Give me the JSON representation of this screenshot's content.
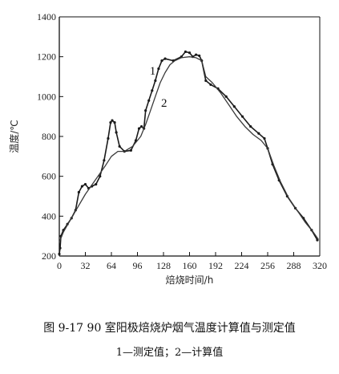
{
  "caption": {
    "title": "图 9-17   90 室阳极焙烧炉烟气温度计算值与测定值",
    "legend": "1—测定值；2—计算值"
  },
  "chart_data": {
    "type": "line",
    "xlabel": "焙烧时间/h",
    "ylabel": "温度/℃",
    "xlim": [
      0,
      320
    ],
    "ylim": [
      200,
      1400
    ],
    "xticks": [
      0,
      32,
      64,
      96,
      128,
      160,
      192,
      224,
      256,
      288,
      320
    ],
    "xtick_labels": [
      "0",
      "32",
      "64",
      "96",
      "128",
      "160",
      "192",
      "224",
      "256",
      "288",
      "320"
    ],
    "yticks": [
      200,
      400,
      600,
      800,
      1000,
      1200,
      1400
    ],
    "ytick_labels": [
      "200",
      "400",
      "600",
      "800",
      "1000",
      "1200",
      "1400"
    ],
    "grid": false,
    "series": [
      {
        "name": "1",
        "label": "1",
        "label_pos": {
          "x": 111,
          "y": 1110
        },
        "color": "#1a1a1a",
        "points": [
          [
            0,
            210
          ],
          [
            1,
            240
          ],
          [
            2,
            300
          ],
          [
            5,
            330
          ],
          [
            10,
            360
          ],
          [
            15,
            390
          ],
          [
            20,
            430
          ],
          [
            24,
            520
          ],
          [
            28,
            550
          ],
          [
            32,
            560
          ],
          [
            36,
            540
          ],
          [
            40,
            550
          ],
          [
            45,
            560
          ],
          [
            50,
            600
          ],
          [
            55,
            680
          ],
          [
            60,
            790
          ],
          [
            63,
            870
          ],
          [
            65,
            880
          ],
          [
            68,
            870
          ],
          [
            70,
            820
          ],
          [
            74,
            750
          ],
          [
            80,
            725
          ],
          [
            88,
            730
          ],
          [
            94,
            780
          ],
          [
            98,
            840
          ],
          [
            101,
            850
          ],
          [
            104,
            840
          ],
          [
            106,
            930
          ],
          [
            110,
            980
          ],
          [
            114,
            1030
          ],
          [
            118,
            1080
          ],
          [
            122,
            1140
          ],
          [
            126,
            1180
          ],
          [
            130,
            1190
          ],
          [
            140,
            1180
          ],
          [
            150,
            1200
          ],
          [
            155,
            1225
          ],
          [
            160,
            1220
          ],
          [
            164,
            1200
          ],
          [
            168,
            1210
          ],
          [
            172,
            1205
          ],
          [
            175,
            1180
          ],
          [
            180,
            1080
          ],
          [
            186,
            1060
          ],
          [
            195,
            1040
          ],
          [
            205,
            1000
          ],
          [
            215,
            950
          ],
          [
            225,
            900
          ],
          [
            235,
            850
          ],
          [
            245,
            815
          ],
          [
            252,
            790
          ],
          [
            256,
            740
          ],
          [
            262,
            660
          ],
          [
            270,
            580
          ],
          [
            280,
            500
          ],
          [
            290,
            440
          ],
          [
            300,
            390
          ],
          [
            310,
            330
          ],
          [
            317,
            280
          ]
        ]
      },
      {
        "name": "2",
        "label": "2",
        "label_pos": {
          "x": 125,
          "y": 950
        },
        "color": "#3a3a3a",
        "points": [
          [
            0,
            270
          ],
          [
            5,
            320
          ],
          [
            12,
            370
          ],
          [
            22,
            440
          ],
          [
            32,
            510
          ],
          [
            44,
            580
          ],
          [
            56,
            650
          ],
          [
            64,
            700
          ],
          [
            72,
            725
          ],
          [
            80,
            725
          ],
          [
            90,
            750
          ],
          [
            100,
            800
          ],
          [
            106,
            860
          ],
          [
            112,
            930
          ],
          [
            118,
            1000
          ],
          [
            124,
            1070
          ],
          [
            130,
            1120
          ],
          [
            136,
            1160
          ],
          [
            142,
            1180
          ],
          [
            150,
            1195
          ],
          [
            160,
            1200
          ],
          [
            168,
            1195
          ],
          [
            175,
            1180
          ],
          [
            180,
            1100
          ],
          [
            188,
            1070
          ],
          [
            198,
            1020
          ],
          [
            208,
            960
          ],
          [
            218,
            900
          ],
          [
            228,
            850
          ],
          [
            238,
            810
          ],
          [
            248,
            780
          ],
          [
            256,
            740
          ],
          [
            264,
            650
          ],
          [
            272,
            570
          ],
          [
            282,
            490
          ],
          [
            292,
            430
          ],
          [
            302,
            370
          ],
          [
            312,
            320
          ],
          [
            318,
            285
          ]
        ]
      }
    ]
  }
}
